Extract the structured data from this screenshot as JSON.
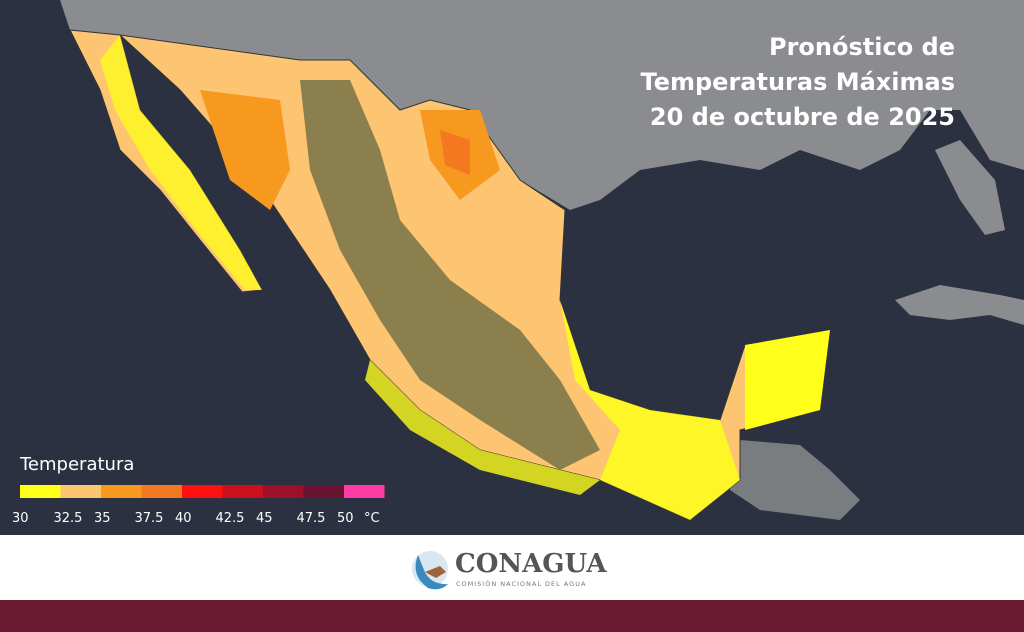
{
  "header": {
    "title_lines": [
      "Pronóstico de",
      "Temperaturas Máximas",
      "20 de octubre  de 2025"
    ]
  },
  "legend": {
    "title": "Temperatura",
    "labels": [
      30,
      32.5,
      35,
      37.5,
      40,
      42.5,
      45,
      47.5,
      50
    ],
    "unit": "°C",
    "colors": [
      "#ffff1a",
      "#fdc472",
      "#f7991f",
      "#f47820",
      "#ff1010",
      "#cc0f1c",
      "#9e0f2c",
      "#6a1232",
      "#ff3ca6"
    ]
  },
  "footer": {
    "logo_name": "CONAGUA",
    "logo_subtitle": "COMISIÓN NACIONAL DEL AGUA"
  }
}
